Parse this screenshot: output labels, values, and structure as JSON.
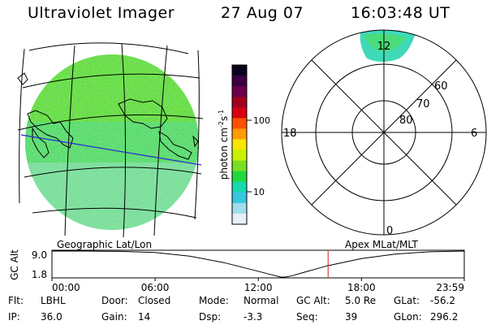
{
  "header": {
    "title": "Ultraviolet Imager",
    "date": "27 Aug 07",
    "time": "16:03:48 UT"
  },
  "colorbar": {
    "label": "photon cm^-2 s^-1",
    "label_main": "photon cm",
    "label_exp1": "-2",
    "label_mid": "s",
    "label_exp2": "-1",
    "ticks": [
      "100",
      "10"
    ],
    "colors": [
      "#0b0020",
      "#3a0040",
      "#6a0048",
      "#a00020",
      "#d80010",
      "#ff5000",
      "#ff9a00",
      "#f7e600",
      "#c8f000",
      "#78e020",
      "#22d840",
      "#18d8b0",
      "#36c8e0",
      "#a0dcec",
      "#e8f0f6"
    ]
  },
  "map_labels": {
    "left": "Geographic Lat/Lon",
    "right": "Apex  MLat/MLT"
  },
  "polar": {
    "mlt_labels": {
      "top": "12",
      "right": "6",
      "bottom": "0",
      "left": "18"
    },
    "mlat_labels": [
      "60",
      "70",
      "80"
    ]
  },
  "chart_data": {
    "type": "line",
    "title": "",
    "ylabel": "GC Alt",
    "yticks": [
      "9.0",
      "1.8"
    ],
    "xticks": [
      "00:00",
      "06:00",
      "12:00",
      "18:00",
      "23:59"
    ],
    "ylim": [
      1.8,
      9.0
    ],
    "x_hours": [
      0,
      2,
      4,
      6,
      8,
      10,
      11.5,
      12.8,
      13.3,
      13.6,
      14,
      14.5,
      16,
      18,
      20,
      22,
      23.98
    ],
    "values": [
      9.0,
      9.0,
      8.9,
      8.6,
      7.6,
      5.8,
      4.0,
      2.4,
      1.8,
      1.8,
      2.2,
      2.9,
      4.9,
      6.9,
      8.2,
      8.8,
      9.0
    ],
    "current_hours": 16.06,
    "line_color": "#000000",
    "marker_color": "#cc2020"
  },
  "info_rows": [
    [
      {
        "label": "Flt:",
        "value": "LBHL"
      },
      {
        "label": "Door:",
        "value": "Closed"
      },
      {
        "label": "Mode:",
        "value": "Normal"
      },
      {
        "label": "GC Alt:",
        "value": "5.0 Re"
      },
      {
        "label": "GLat:",
        "value": "-56.2"
      }
    ],
    [
      {
        "label": "IP:",
        "value": "36.0"
      },
      {
        "label": "Gain:",
        "value": "14"
      },
      {
        "label": "Dsp:",
        "value": "-3.3"
      },
      {
        "label": "Seq:",
        "value": "39"
      },
      {
        "label": "GLon:",
        "value": "296.2"
      }
    ]
  ]
}
